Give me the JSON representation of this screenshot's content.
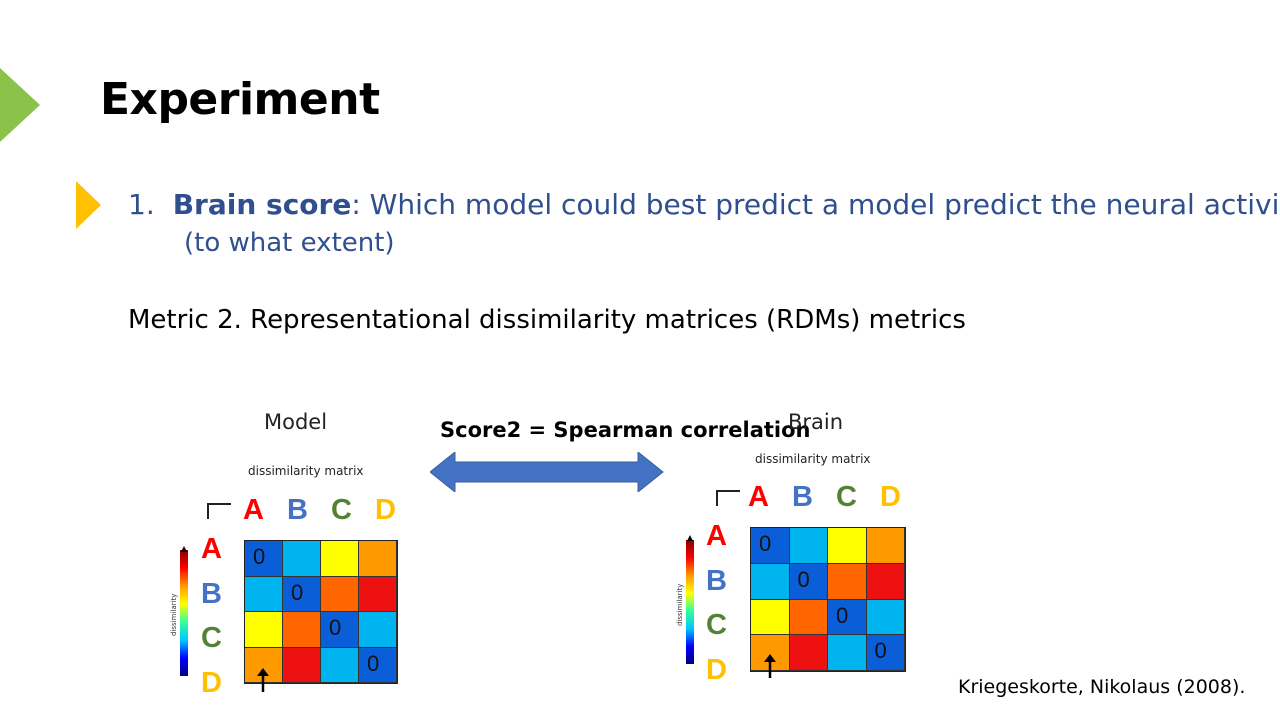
{
  "slide": {
    "title": "Experiment",
    "bullet": {
      "number": "1.",
      "term": "Brain score",
      "text": ": Which model could best predict a model predict the neural activity?",
      "continuation": "(to what extent)"
    },
    "metric": "Metric 2. Representational dissimilarity matrices (RDMs) metrics",
    "score_label": "Score2 = Spearman correlation",
    "citation": "Kriegeskorte, Nikolaus (2008).",
    "accent_green": "#8bc34a",
    "accent_yellow": "#ffc000"
  },
  "model": {
    "label": "Model",
    "matrix_title": "dissimilarity matrix",
    "axis_label": "dissimilarity",
    "letters": [
      "A",
      "B",
      "C",
      "D"
    ],
    "cells": [
      [
        "0",
        "",
        "",
        ""
      ],
      [
        "",
        "0",
        "",
        ""
      ],
      [
        "",
        "",
        "0",
        ""
      ],
      [
        "",
        "",
        "",
        "0"
      ]
    ],
    "colors": [
      [
        "#0a5fd8",
        "#00b4f0",
        "#ffff00",
        "#ff9900"
      ],
      [
        "#00b4f0",
        "#0a5fd8",
        "#ff6600",
        "#ee1111"
      ],
      [
        "#ffff00",
        "#ff6600",
        "#0a5fd8",
        "#00b4f0"
      ],
      [
        "#ff9900",
        "#ee1111",
        "#00b4f0",
        "#0a5fd8"
      ]
    ]
  },
  "brain": {
    "label": "Brain",
    "matrix_title": "dissimilarity matrix",
    "axis_label": "dissimilarity",
    "letters": [
      "A",
      "B",
      "C",
      "D"
    ],
    "cells": [
      [
        "0",
        "",
        "",
        ""
      ],
      [
        "",
        "0",
        "",
        ""
      ],
      [
        "",
        "",
        "0",
        ""
      ],
      [
        "",
        "",
        "",
        "0"
      ]
    ],
    "colors": [
      [
        "#0a5fd8",
        "#00b4f0",
        "#ffff00",
        "#ff9900"
      ],
      [
        "#00b4f0",
        "#0a5fd8",
        "#ff6600",
        "#ee1111"
      ],
      [
        "#ffff00",
        "#ff6600",
        "#0a5fd8",
        "#00b4f0"
      ],
      [
        "#ff9900",
        "#ee1111",
        "#00b4f0",
        "#0a5fd8"
      ]
    ]
  },
  "letter_colors": [
    "#ff0000",
    "#4472c4",
    "#548235",
    "#ffc000"
  ],
  "arrow_color": "#4472c4"
}
